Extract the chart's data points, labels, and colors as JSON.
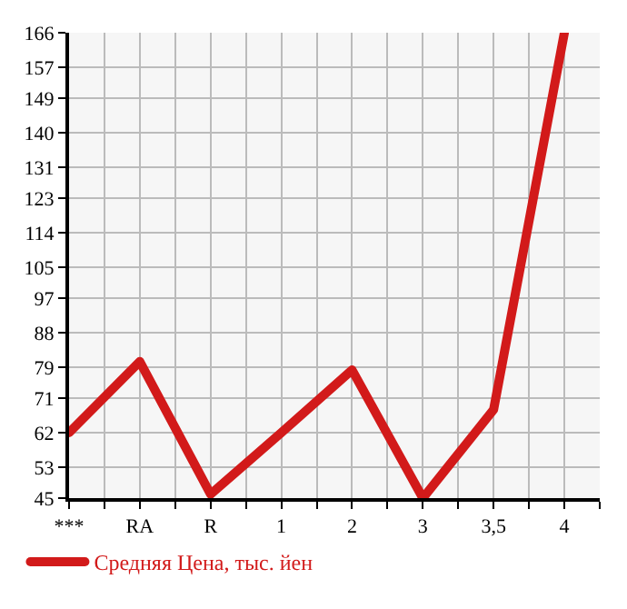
{
  "chart_data": {
    "type": "line",
    "categories": [
      "***",
      "RA",
      "R",
      "1",
      "2",
      "3",
      "3,5",
      "4"
    ],
    "series": [
      {
        "name": "Средняя Цена, тыс. йен",
        "color": "#d21a1a",
        "values": [
          62,
          80.5,
          46,
          62,
          78.3,
          45,
          68,
          166
        ]
      }
    ],
    "ylim": [
      45,
      166
    ],
    "yticks": [
      45,
      53,
      62,
      71,
      79,
      88,
      97,
      105,
      114,
      123,
      131,
      140,
      149,
      157,
      166
    ],
    "grid": true,
    "legend": "bottom left",
    "marker": "none",
    "line_style": "solid"
  }
}
